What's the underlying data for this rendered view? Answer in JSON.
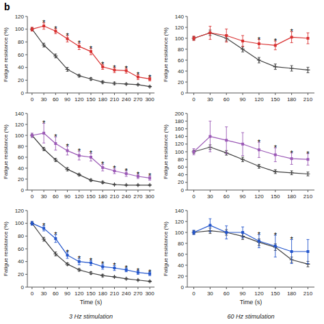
{
  "chart_data": [
    {
      "type": "line",
      "x": [
        0,
        30,
        60,
        90,
        120,
        150,
        180,
        210,
        240,
        270,
        300
      ],
      "xlim": [
        -12,
        312
      ],
      "xticks": [
        0,
        30,
        60,
        90,
        120,
        150,
        180,
        210,
        240,
        270,
        300
      ],
      "ylim": [
        0,
        120
      ],
      "yticks": [
        0,
        20,
        40,
        60,
        80,
        100,
        120
      ],
      "ylabel": "Fatigue resistance (%)",
      "grid": false,
      "series": [
        {
          "color": "#404040",
          "marker": "plus",
          "values": [
            100,
            75,
            58,
            37,
            27,
            22,
            17,
            15,
            14,
            13,
            10
          ],
          "errors": [
            2,
            3,
            3,
            3,
            2,
            2,
            2,
            2,
            1,
            1,
            1
          ]
        },
        {
          "color": "#d93030",
          "marker": "square",
          "values": [
            100,
            105,
            97,
            85,
            73,
            65,
            41,
            36,
            35,
            25,
            22
          ],
          "errors": [
            3,
            5,
            4,
            5,
            5,
            5,
            4,
            4,
            4,
            4,
            3
          ]
        }
      ],
      "annotations": [
        {
          "text": "b"
        },
        {
          "x": 30,
          "text": "*"
        },
        {
          "x": 60,
          "text": "*"
        },
        {
          "x": 90,
          "text": "*"
        },
        {
          "x": 120,
          "text": "*"
        },
        {
          "x": 150,
          "text": "*"
        },
        {
          "x": 180,
          "text": "*"
        },
        {
          "x": 210,
          "text": "*"
        },
        {
          "x": 240,
          "text": "*"
        },
        {
          "x": 270,
          "text": "*"
        },
        {
          "x": 300,
          "text": "*"
        }
      ]
    },
    {
      "type": "line",
      "x": [
        0,
        30,
        60,
        90,
        120,
        150,
        180,
        210
      ],
      "xlim": [
        -12,
        222
      ],
      "xticks": [
        0,
        30,
        60,
        90,
        120,
        150,
        180,
        210
      ],
      "ylim": [
        0,
        140
      ],
      "yticks": [
        0,
        20,
        40,
        60,
        80,
        100,
        120,
        140
      ],
      "ylabel": "Fatigue resistance (%)",
      "grid": false,
      "series": [
        {
          "color": "#404040",
          "marker": "plus",
          "values": [
            100,
            110,
            100,
            80,
            60,
            48,
            45,
            42
          ],
          "errors": [
            3,
            5,
            5,
            5,
            5,
            5,
            5,
            5
          ]
        },
        {
          "color": "#d93030",
          "marker": "square",
          "values": [
            100,
            110,
            105,
            95,
            90,
            87,
            102,
            100
          ],
          "errors": [
            4,
            12,
            12,
            10,
            8,
            8,
            10,
            10
          ]
        }
      ],
      "annotations": [
        {
          "x": 120,
          "text": "*"
        },
        {
          "x": 150,
          "text": "*"
        },
        {
          "x": 180,
          "text": "*"
        }
      ]
    },
    {
      "type": "line",
      "x": [
        0,
        30,
        60,
        90,
        120,
        150,
        180,
        210,
        240,
        270,
        300
      ],
      "xlim": [
        -12,
        312
      ],
      "xticks": [
        0,
        30,
        60,
        90,
        120,
        150,
        180,
        210,
        240,
        270,
        300
      ],
      "ylim": [
        0,
        140
      ],
      "yticks": [
        0,
        20,
        40,
        60,
        80,
        100,
        120,
        140
      ],
      "ylabel": "Fatigue resistance (%)",
      "grid": false,
      "series": [
        {
          "color": "#404040",
          "marker": "plus",
          "values": [
            100,
            75,
            55,
            38,
            28,
            18,
            14,
            10,
            9,
            9,
            9
          ],
          "errors": [
            2,
            3,
            3,
            3,
            2,
            2,
            2,
            1,
            1,
            1,
            1
          ]
        },
        {
          "color": "#9b59b6",
          "marker": "square",
          "values": [
            100,
            104,
            85,
            72,
            63,
            60,
            41,
            35,
            30,
            25,
            22
          ],
          "errors": [
            4,
            18,
            12,
            8,
            8,
            7,
            6,
            5,
            5,
            4,
            4
          ]
        }
      ],
      "annotations": [
        {
          "x": 30,
          "text": "*"
        },
        {
          "x": 60,
          "text": "*"
        },
        {
          "x": 90,
          "text": "*"
        },
        {
          "x": 120,
          "text": "*"
        },
        {
          "x": 150,
          "text": "*"
        },
        {
          "x": 180,
          "text": "*"
        },
        {
          "x": 210,
          "text": "*"
        },
        {
          "x": 240,
          "text": "*"
        },
        {
          "x": 270,
          "text": "*"
        },
        {
          "x": 300,
          "text": "*"
        }
      ]
    },
    {
      "type": "line",
      "x": [
        0,
        30,
        60,
        90,
        120,
        150,
        180,
        210
      ],
      "xlim": [
        -12,
        222
      ],
      "xticks": [
        0,
        30,
        60,
        90,
        120,
        150,
        180,
        210
      ],
      "ylim": [
        0,
        200
      ],
      "yticks": [
        0,
        20,
        40,
        60,
        80,
        100,
        120,
        140,
        160,
        180,
        200
      ],
      "ylabel": "Fatigue resistance (%)",
      "grid": false,
      "series": [
        {
          "color": "#404040",
          "marker": "plus",
          "values": [
            100,
            112,
            97,
            80,
            62,
            48,
            45,
            42
          ],
          "errors": [
            4,
            6,
            6,
            6,
            5,
            5,
            5,
            5
          ]
        },
        {
          "color": "#9b59b6",
          "marker": "square",
          "values": [
            100,
            140,
            130,
            120,
            105,
            92,
            82,
            80
          ],
          "errors": [
            8,
            40,
            35,
            30,
            20,
            18,
            15,
            15
          ]
        }
      ],
      "annotations": [
        {
          "x": 120,
          "text": "*"
        },
        {
          "x": 150,
          "text": "*"
        },
        {
          "x": 180,
          "text": "*"
        },
        {
          "x": 210,
          "text": "*"
        }
      ]
    },
    {
      "type": "line",
      "x": [
        0,
        30,
        60,
        90,
        120,
        150,
        180,
        210,
        240,
        270,
        300
      ],
      "xlim": [
        -12,
        312
      ],
      "xticks": [
        0,
        30,
        60,
        90,
        120,
        150,
        180,
        210,
        240,
        270,
        300
      ],
      "ylim": [
        0,
        120
      ],
      "yticks": [
        0,
        20,
        40,
        60,
        80,
        100,
        120
      ],
      "xlabel": "Time (s)",
      "ylabel": "Fatigue resistance (%)",
      "grid": false,
      "series": [
        {
          "color": "#404040",
          "marker": "plus",
          "values": [
            100,
            75,
            52,
            36,
            27,
            22,
            18,
            16,
            13,
            11,
            9
          ],
          "errors": [
            2,
            3,
            3,
            2,
            2,
            2,
            2,
            1,
            1,
            1,
            1
          ]
        },
        {
          "color": "#2255cc",
          "marker": "square",
          "values": [
            100,
            92,
            76,
            50,
            40,
            38,
            32,
            30,
            27,
            23,
            21
          ],
          "errors": [
            3,
            4,
            6,
            5,
            5,
            4,
            4,
            4,
            3,
            3,
            3
          ]
        }
      ],
      "annotations": [
        {
          "x": 30,
          "text": "*"
        },
        {
          "x": 60,
          "text": "*"
        },
        {
          "x": 90,
          "text": "*"
        },
        {
          "x": 120,
          "text": "*"
        },
        {
          "x": 150,
          "text": "*"
        },
        {
          "x": 180,
          "text": "*"
        },
        {
          "x": 210,
          "text": "*"
        },
        {
          "x": 240,
          "text": "*"
        },
        {
          "x": 270,
          "text": "*"
        },
        {
          "x": 300,
          "text": "*"
        },
        {
          "text": "3 Hz stimulation"
        }
      ]
    },
    {
      "type": "line",
      "x": [
        0,
        30,
        60,
        90,
        120,
        150,
        180,
        210
      ],
      "xlim": [
        -12,
        222
      ],
      "xticks": [
        0,
        30,
        60,
        90,
        120,
        150,
        180,
        210
      ],
      "ylim": [
        0,
        140
      ],
      "yticks": [
        0,
        20,
        40,
        60,
        80,
        100,
        120,
        140
      ],
      "xlabel": "Time (s)",
      "ylabel": "Fatigue resistance (%)",
      "grid": false,
      "series": [
        {
          "color": "#404040",
          "marker": "plus",
          "values": [
            100,
            103,
            100,
            93,
            82,
            73,
            50,
            42
          ],
          "errors": [
            3,
            5,
            5,
            6,
            6,
            6,
            5,
            5
          ]
        },
        {
          "color": "#2255cc",
          "marker": "square",
          "values": [
            100,
            113,
            100,
            100,
            84,
            75,
            65,
            65
          ],
          "errors": [
            4,
            12,
            12,
            10,
            12,
            20,
            22,
            22
          ]
        }
      ],
      "annotations": [
        {
          "x": 120,
          "text": "*"
        },
        {
          "x": 150,
          "text": "*"
        },
        {
          "x": 180,
          "text": "*"
        },
        {
          "text": "60 Hz stimulation"
        }
      ]
    }
  ]
}
